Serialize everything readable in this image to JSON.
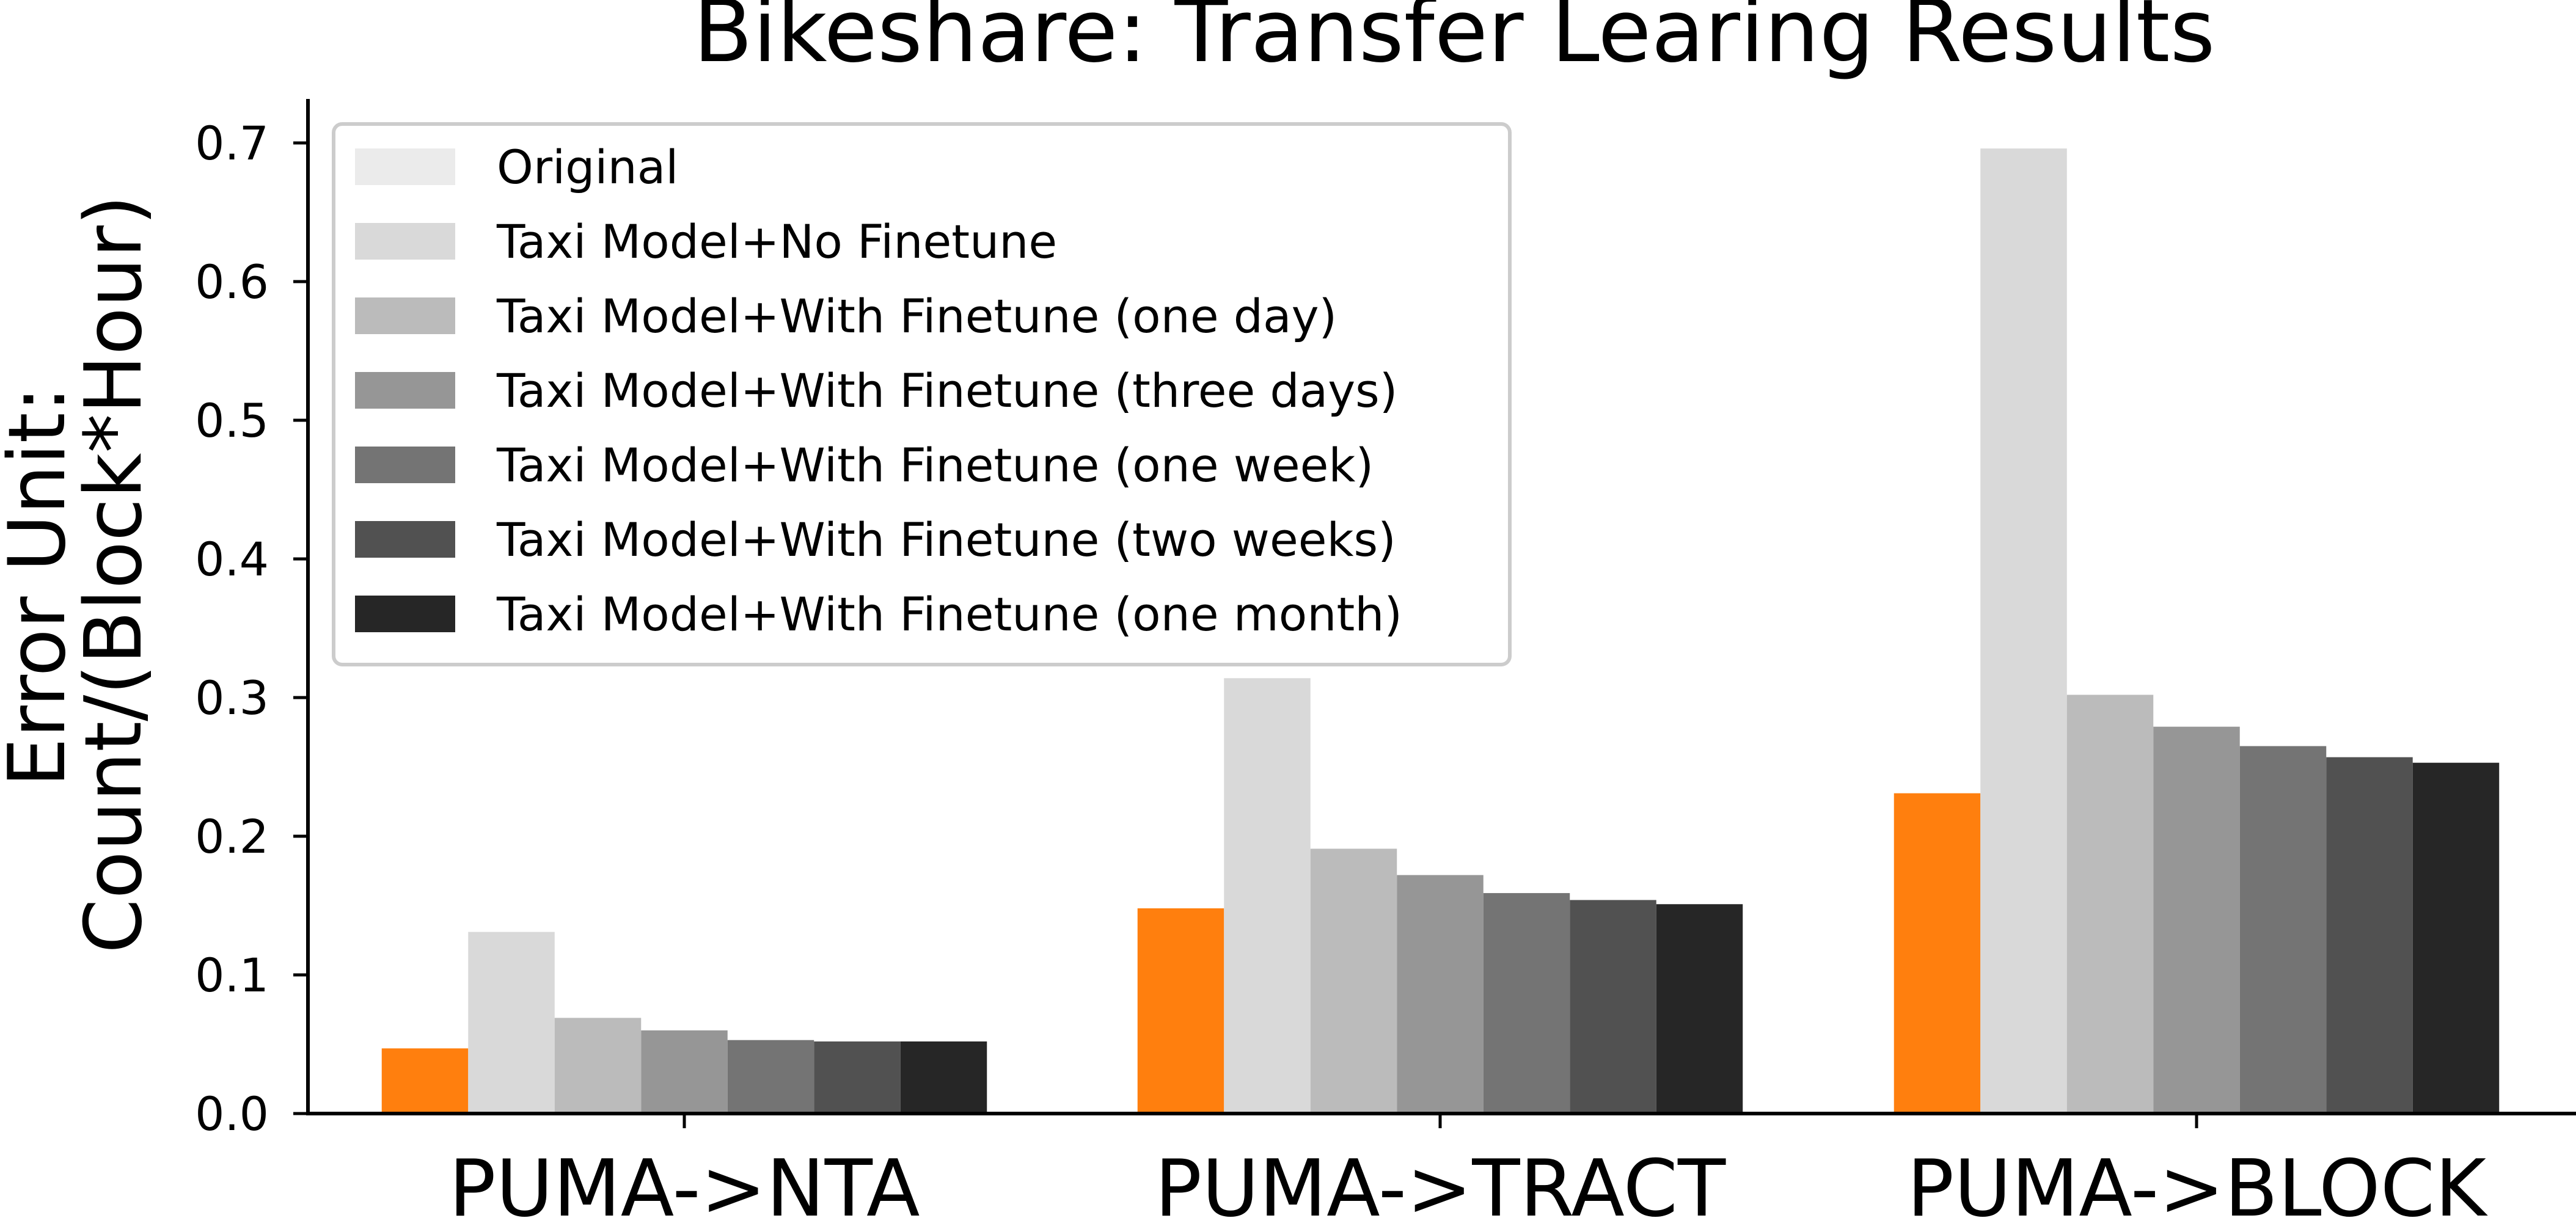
{
  "chart_data": {
    "type": "bar",
    "title": "Bikeshare: Transfer Learing Results",
    "ylabel_lines": [
      "Error Unit:",
      "Count/(Block*Hour)"
    ],
    "xlabel": "",
    "categories": [
      "PUMA->NTA",
      "PUMA->TRACT",
      "PUMA->BLOCK"
    ],
    "ylim": [
      0,
      0.73
    ],
    "yticks": [
      0.0,
      0.1,
      0.2,
      0.3,
      0.4,
      0.5,
      0.6,
      0.7
    ],
    "ytick_labels": [
      "0.0",
      "0.1",
      "0.2",
      "0.3",
      "0.4",
      "0.5",
      "0.6",
      "0.7"
    ],
    "grid": false,
    "legend_position": "top-left",
    "series": [
      {
        "name": "Original",
        "legend_color": "#ebebeb",
        "bar_color": "#ff7f0e",
        "values": [
          0.047,
          0.148,
          0.231
        ]
      },
      {
        "name": "Taxi Model+No Finetune",
        "color": "#d9d9d9",
        "values": [
          0.131,
          0.314,
          0.696
        ]
      },
      {
        "name": "Taxi Model+With Finetune (one day)",
        "color": "#bbbbbb",
        "values": [
          0.069,
          0.191,
          0.302
        ]
      },
      {
        "name": "Taxi Model+With Finetune (three days)",
        "color": "#969696",
        "values": [
          0.06,
          0.172,
          0.279
        ]
      },
      {
        "name": "Taxi Model+With Finetune (one week)",
        "color": "#747474",
        "values": [
          0.053,
          0.159,
          0.265
        ]
      },
      {
        "name": "Taxi Model+With Finetune (two weeks)",
        "color": "#515151",
        "values": [
          0.052,
          0.154,
          0.257
        ]
      },
      {
        "name": "Taxi Model+With Finetune (one month)",
        "color": "#262626",
        "values": [
          0.052,
          0.151,
          0.253
        ]
      }
    ]
  }
}
